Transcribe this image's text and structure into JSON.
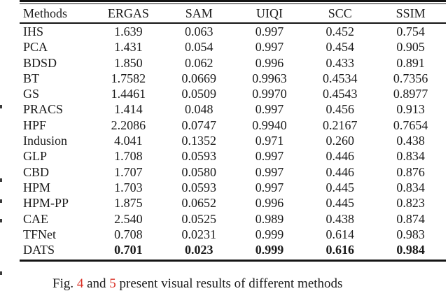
{
  "table": {
    "columns": [
      "Methods",
      "ERGAS",
      "SAM",
      "UIQI",
      "SCC",
      "SSIM"
    ],
    "rows": [
      {
        "method": "IHS",
        "values": [
          "1.639",
          "0.063",
          "0.997",
          "0.452",
          "0.754"
        ],
        "bold": false
      },
      {
        "method": "PCA",
        "values": [
          "1.431",
          "0.054",
          "0.997",
          "0.454",
          "0.905"
        ],
        "bold": false
      },
      {
        "method": "BDSD",
        "values": [
          "1.850",
          "0.062",
          "0.996",
          "0.433",
          "0.891"
        ],
        "bold": false
      },
      {
        "method": "BT",
        "values": [
          "1.7582",
          "0.0669",
          "0.9963",
          "0.4534",
          "0.7356"
        ],
        "bold": false
      },
      {
        "method": "GS",
        "values": [
          "1.4461",
          "0.0509",
          "0.9970",
          "0.4543",
          "0.8977"
        ],
        "bold": false
      },
      {
        "method": "PRACS",
        "values": [
          "1.414",
          "0.048",
          "0.997",
          "0.456",
          "0.913"
        ],
        "bold": false
      },
      {
        "method": "HPF",
        "values": [
          "2.2086",
          "0.0747",
          "0.9940",
          "0.2167",
          "0.7654"
        ],
        "bold": false
      },
      {
        "method": "Indusion",
        "values": [
          "4.041",
          "0.1352",
          "0.971",
          "0.260",
          "0.438"
        ],
        "bold": false
      },
      {
        "method": "GLP",
        "values": [
          "1.708",
          "0.0593",
          "0.997",
          "0.446",
          "0.834"
        ],
        "bold": false
      },
      {
        "method": "CBD",
        "values": [
          "1.707",
          "0.0580",
          "0.997",
          "0.446",
          "0.876"
        ],
        "bold": false
      },
      {
        "method": "HPM",
        "values": [
          "1.703",
          "0.0593",
          "0.997",
          "0.445",
          "0.834"
        ],
        "bold": false
      },
      {
        "method": "HPM-PP",
        "values": [
          "1.875",
          "0.0652",
          "0.996",
          "0.445",
          "0.823"
        ],
        "bold": false
      },
      {
        "method": "CAE",
        "values": [
          "2.540",
          "0.0525",
          "0.989",
          "0.438",
          "0.874"
        ],
        "bold": false
      },
      {
        "method": "TFNet",
        "values": [
          "0.708",
          "0.0231",
          "0.999",
          "0.614",
          "0.983"
        ],
        "bold": false
      },
      {
        "method": "DATS",
        "values": [
          "0.701",
          "0.023",
          "0.999",
          "0.616",
          "0.984"
        ],
        "bold": true
      }
    ]
  },
  "caption": {
    "prefix": "Fig. ",
    "ref1": "4",
    "middle": " and ",
    "ref2": "5",
    "suffix": " present visual results of different methods"
  },
  "colors": {
    "text": "#1a1a1a",
    "rule": "#141414",
    "figure_link": "#d93025",
    "background": "#ffffff"
  }
}
